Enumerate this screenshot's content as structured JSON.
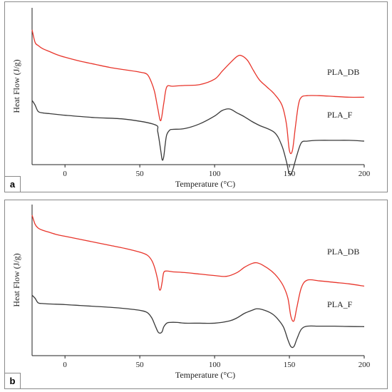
{
  "panels": [
    {
      "letter": "a",
      "ylabel": "Heat Flow (J/g)",
      "xlabel": "Temperature (°C)",
      "series_labels": [
        "PLA_DB",
        "PLA_F"
      ]
    },
    {
      "letter": "b",
      "ylabel": "Heat Flow (J/g)",
      "xlabel": "Temperature (°C)",
      "series_labels": [
        "PLA_DB",
        "PLA_F"
      ]
    }
  ],
  "colors": {
    "PLA_DB": "#e8352b",
    "PLA_F": "#3a3a3a",
    "axis": "#222222"
  },
  "chart_data": [
    {
      "type": "line",
      "title": "",
      "panel_label": "a",
      "xlabel": "Temperature (°C)",
      "ylabel": "Heat Flow (J/g)",
      "xlim": [
        -22,
        200
      ],
      "ylim": [
        0,
        10
      ],
      "xticks": [
        0,
        50,
        100,
        150,
        200
      ],
      "y_tick_labels": false,
      "series": [
        {
          "name": "PLA_DB",
          "color": "#e8352b",
          "x": [
            -22,
            -20,
            -18,
            -15,
            -10,
            -5,
            0,
            10,
            20,
            30,
            40,
            50,
            55,
            58,
            60,
            62,
            64,
            66,
            68,
            72,
            80,
            90,
            100,
            105,
            110,
            115,
            118,
            122,
            126,
            130,
            135,
            140,
            145,
            148,
            150,
            152,
            154,
            156,
            158,
            162,
            170,
            180,
            190,
            200
          ],
          "y": [
            8.6,
            7.8,
            7.6,
            7.4,
            7.2,
            7.0,
            6.85,
            6.6,
            6.4,
            6.2,
            6.05,
            5.9,
            5.75,
            5.2,
            4.6,
            3.6,
            2.8,
            3.9,
            4.95,
            5.0,
            5.05,
            5.1,
            5.45,
            5.95,
            6.45,
            6.9,
            6.95,
            6.65,
            6.0,
            5.4,
            4.95,
            4.5,
            3.8,
            2.6,
            0.9,
            0.9,
            2.4,
            3.8,
            4.3,
            4.4,
            4.4,
            4.35,
            4.3,
            4.3
          ]
        },
        {
          "name": "PLA_F",
          "color": "#3a3a3a",
          "x": [
            -22,
            -20,
            -18,
            -15,
            -10,
            -5,
            0,
            20,
            40,
            60,
            62,
            64,
            65,
            66,
            67,
            68,
            70,
            72,
            80,
            90,
            100,
            105,
            110,
            115,
            120,
            125,
            130,
            140,
            145,
            148,
            150,
            152,
            155,
            158,
            162,
            170,
            180,
            190,
            200
          ],
          "y": [
            4.1,
            3.8,
            3.4,
            3.3,
            3.25,
            3.2,
            3.15,
            3.0,
            2.9,
            2.55,
            2.1,
            0.9,
            0.3,
            0.5,
            1.3,
            1.9,
            2.2,
            2.25,
            2.3,
            2.6,
            3.1,
            3.45,
            3.55,
            3.3,
            3.05,
            2.75,
            2.5,
            2.05,
            1.2,
            0.2,
            -0.6,
            -0.4,
            0.6,
            1.4,
            1.5,
            1.55,
            1.55,
            1.55,
            1.5
          ]
        }
      ]
    },
    {
      "type": "line",
      "title": "",
      "panel_label": "b",
      "xlabel": "Temperature (°C)",
      "ylabel": "Heat Flow (J/g)",
      "xlim": [
        -22,
        200
      ],
      "ylim": [
        0,
        10
      ],
      "xticks": [
        0,
        50,
        100,
        150,
        200
      ],
      "y_tick_labels": false,
      "series": [
        {
          "name": "PLA_DB",
          "color": "#e8352b",
          "x": [
            -22,
            -20,
            -18,
            -15,
            -10,
            -5,
            0,
            10,
            20,
            30,
            40,
            50,
            55,
            58,
            60,
            62,
            63,
            64,
            65,
            66,
            68,
            72,
            80,
            90,
            100,
            108,
            115,
            120,
            125,
            128,
            132,
            138,
            142,
            146,
            149,
            151,
            153,
            155,
            158,
            162,
            170,
            180,
            190,
            200
          ],
          "y": [
            9.3,
            8.7,
            8.45,
            8.3,
            8.15,
            8.0,
            7.9,
            7.7,
            7.5,
            7.3,
            7.1,
            6.85,
            6.65,
            6.3,
            5.8,
            5.0,
            4.4,
            4.4,
            4.9,
            5.5,
            5.6,
            5.55,
            5.5,
            5.4,
            5.3,
            5.25,
            5.5,
            5.85,
            6.1,
            6.15,
            6.0,
            5.6,
            5.2,
            4.6,
            3.8,
            2.6,
            2.3,
            3.2,
            4.5,
            5.0,
            4.95,
            4.85,
            4.75,
            4.6
          ]
        },
        {
          "name": "PLA_F",
          "color": "#3a3a3a",
          "x": [
            -22,
            -20,
            -18,
            -15,
            -10,
            0,
            10,
            20,
            30,
            40,
            50,
            55,
            58,
            60,
            62,
            63,
            64,
            65,
            66,
            68,
            70,
            75,
            80,
            90,
            100,
            110,
            115,
            120,
            125,
            128,
            132,
            138,
            142,
            146,
            149,
            151,
            153,
            155,
            158,
            162,
            170,
            180,
            190,
            200
          ],
          "y": [
            4.0,
            3.8,
            3.5,
            3.45,
            3.42,
            3.38,
            3.32,
            3.26,
            3.2,
            3.12,
            3.0,
            2.85,
            2.5,
            2.05,
            1.6,
            1.5,
            1.5,
            1.6,
            1.9,
            2.15,
            2.2,
            2.2,
            2.15,
            2.15,
            2.15,
            2.3,
            2.5,
            2.8,
            3.0,
            3.1,
            3.05,
            2.8,
            2.45,
            1.9,
            1.05,
            0.6,
            0.6,
            1.1,
            1.75,
            1.95,
            1.95,
            1.95,
            1.93,
            1.92
          ]
        }
      ]
    }
  ]
}
